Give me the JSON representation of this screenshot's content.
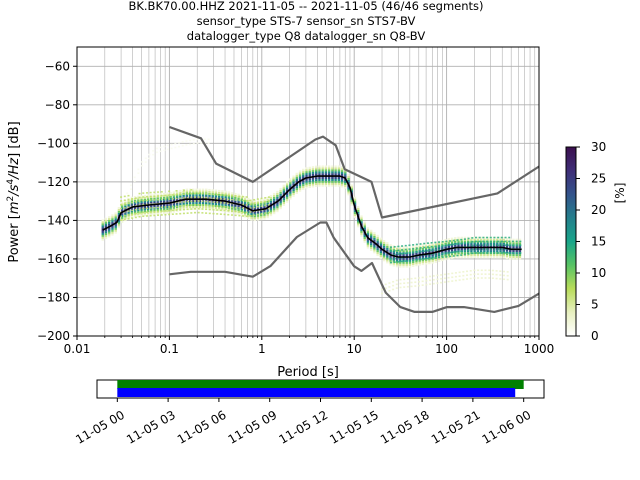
{
  "title_lines": [
    "BK.BK70.00.HHZ   2021-11-05 -- 2021-11-05  (46/46 segments)",
    "sensor_type STS-7 sensor_sn STS7-BV",
    "datalogger_type Q8 datalogger_sn Q8-BV"
  ],
  "chart_data": [
    {
      "type": "heatmap",
      "xlabel": "Period [s]",
      "ylabel_parts": [
        "Power [",
        "m",
        "2",
        "/s",
        "4",
        "/Hz",
        "] [dB]"
      ],
      "xscale": "log",
      "xlim": [
        0.01,
        1000
      ],
      "ylim": [
        -200,
        -50
      ],
      "x_ticks": [
        0.01,
        0.1,
        1,
        10,
        100,
        1000
      ],
      "x_tick_labels": [
        "0.01",
        "0.1",
        "1",
        "10",
        "100",
        "1000"
      ],
      "y_ticks": [
        -200,
        -180,
        -160,
        -140,
        -120,
        -100,
        -80,
        -60
      ],
      "y_tick_labels": [
        "−200",
        "−180",
        "−160",
        "−140",
        "−120",
        "−100",
        "−80",
        "−60"
      ],
      "grid": true,
      "colorbar": {
        "label": "[%]",
        "min": 0,
        "max": 30,
        "ticks": [
          0,
          5,
          10,
          15,
          20,
          25,
          30
        ],
        "tick_labels": [
          "0",
          "5",
          "10",
          "15",
          "20",
          "25",
          "30"
        ],
        "colormap": [
          "#ffffff",
          "#e8f0c0",
          "#b9dc5a",
          "#58c364",
          "#19a58a",
          "#247f8c",
          "#33538b",
          "#3f2e77",
          "#3b0f4e"
        ]
      },
      "series": [
        {
          "name": "",
          "role": "mean",
          "color": "#000000",
          "x": [
            0.019,
            0.023,
            0.027,
            0.03,
            0.04,
            0.06,
            0.1,
            0.15,
            0.25,
            0.4,
            0.6,
            0.8,
            1.1,
            1.5,
            2,
            2.5,
            3,
            4,
            5,
            6,
            7,
            8,
            9,
            10,
            12,
            14,
            17,
            20,
            25,
            30,
            40,
            50,
            70,
            100,
            130,
            170,
            220,
            300,
            400,
            500,
            650
          ],
          "y": [
            -145,
            -143,
            -141,
            -136,
            -133,
            -132,
            -131,
            -129,
            -129,
            -130,
            -132,
            -135,
            -134,
            -130,
            -124,
            -120,
            -118,
            -117,
            -117,
            -117,
            -117,
            -118,
            -123,
            -132,
            -143,
            -149,
            -152,
            -155,
            -158,
            -159,
            -159,
            -158,
            -157,
            -155,
            -154,
            -154,
            -154,
            -154,
            -154,
            -155,
            -155
          ]
        },
        {
          "name": "",
          "role": "high-noise-model",
          "color": "#666666",
          "x": [
            0.1,
            0.22,
            0.32,
            0.8,
            3.8,
            4.6,
            6.3,
            7.9,
            15.4,
            20,
            354.8,
            1000
          ],
          "y": [
            -91.5,
            -97.4,
            -110.5,
            -120,
            -98,
            -96.5,
            -101,
            -113.5,
            -120,
            -138.5,
            -126,
            -112
          ]
        },
        {
          "name": "",
          "role": "low-noise-model",
          "color": "#666666",
          "x": [
            0.1,
            0.17,
            0.4,
            0.8,
            1.24,
            2.4,
            4.3,
            5,
            6,
            10,
            12,
            15.6,
            21.9,
            31.6,
            45,
            70,
            101,
            154,
            328,
            600,
            1000
          ],
          "y": [
            -168,
            -166.7,
            -166.7,
            -169.2,
            -163.7,
            -148.6,
            -141.1,
            -141.1,
            -149,
            -163.8,
            -166.2,
            -162.1,
            -177.5,
            -185,
            -187.5,
            -187.5,
            -185,
            -185,
            -187.5,
            -184.4,
            -178
          ]
        }
      ],
      "density_bands": [
        {
          "x": [
            0.035,
            0.05,
            0.07,
            0.1,
            0.15,
            0.2,
            0.28
          ],
          "y_low": [
            -128,
            -112,
            -105,
            -103,
            -101,
            -100,
            -100
          ],
          "y_high": [
            -126,
            -110,
            -103,
            -101,
            -99,
            -98,
            -98
          ],
          "level": 1
        },
        {
          "x": [
            0.03,
            0.05,
            0.1,
            0.2,
            0.4,
            0.7,
            1.2
          ],
          "y_low": [
            -140,
            -138,
            -137,
            -136,
            -137,
            -138,
            -136
          ],
          "y_high": [
            -128,
            -126,
            -125,
            -124,
            -126,
            -128,
            -127
          ],
          "level": 7
        },
        {
          "x": [
            25,
            40,
            60,
            100,
            150,
            200,
            300,
            500,
            650
          ],
          "y_low": [
            -162,
            -161,
            -160,
            -159,
            -158,
            -157,
            -157,
            -157,
            -157
          ],
          "y_high": [
            -154,
            -153,
            -152,
            -150,
            -149,
            -148,
            -148,
            -149,
            -150
          ],
          "level": 14
        },
        {
          "x": [
            20,
            30,
            50,
            100,
            200,
            300,
            500
          ],
          "y_low": [
            -178,
            -175,
            -174,
            -172,
            -170,
            -170,
            -171
          ],
          "y_high": [
            -173,
            -171,
            -169,
            -167,
            -165,
            -165,
            -166
          ],
          "level": 3
        }
      ]
    },
    {
      "type": "timeline",
      "x_tick_labels": [
        "11-05 00",
        "11-05 03",
        "11-05 06",
        "11-05 09",
        "11-05 12",
        "11-05 15",
        "11-05 18",
        "11-05 21",
        "11-06 00"
      ],
      "x_ticks_hours": [
        0,
        3,
        6,
        9,
        12,
        15,
        18,
        21,
        24
      ],
      "xlim_hours": [
        -1.2,
        25.2
      ],
      "bars": [
        {
          "color": "#008000",
          "start_hours": 0,
          "end_hours": 24
        },
        {
          "color": "#0000ff",
          "start_hours": 0,
          "end_hours": 23.5
        }
      ]
    }
  ]
}
